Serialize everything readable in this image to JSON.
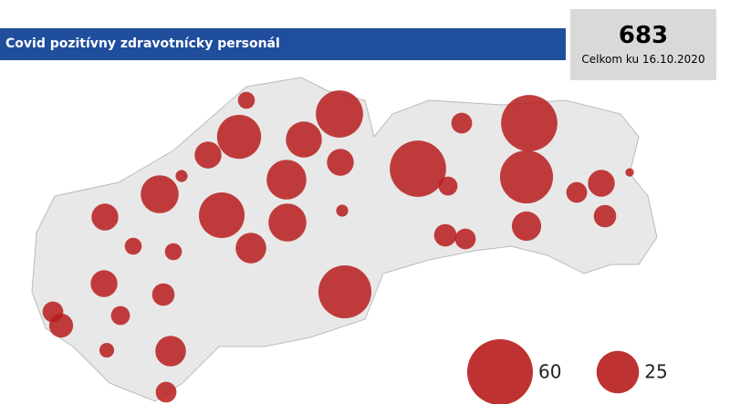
{
  "title": "Covid pozitívny zdravotnícky personál",
  "total": 683,
  "total_label": "Celkom ku 16.10.2020",
  "bubbles": [
    4,
    31,
    27,
    18,
    10,
    10,
    2,
    20,
    22,
    29,
    20,
    2,
    10,
    4,
    4,
    13,
    10,
    7,
    5,
    6,
    8,
    3,
    13,
    6,
    39,
    44,
    6,
    44,
    39,
    5,
    12,
    7,
    6,
    6,
    10,
    7,
    1
  ],
  "legend": [
    60,
    25
  ]
}
